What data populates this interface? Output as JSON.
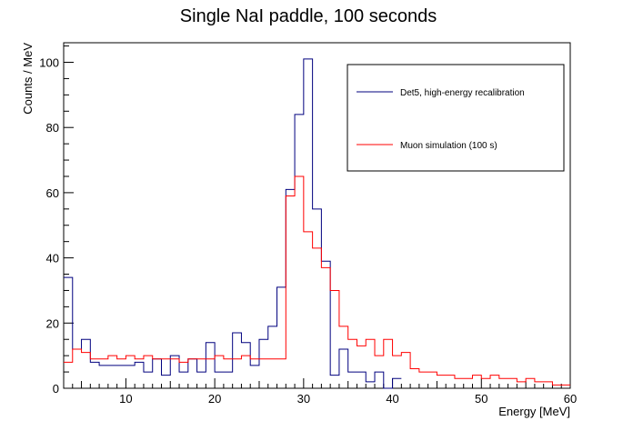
{
  "chart_data": {
    "type": "line",
    "title": "Single NaI paddle, 100 seconds",
    "xlabel": "Energy [MeV]",
    "ylabel": "Counts / MeV",
    "xlim": [
      3,
      60
    ],
    "ylim": [
      0,
      106
    ],
    "x_ticks": [
      "10",
      "20",
      "30",
      "40",
      "50",
      "60"
    ],
    "y_ticks": [
      "0",
      "20",
      "40",
      "60",
      "80",
      "100"
    ],
    "grid": false,
    "legend_position": "top-right",
    "bin_width": 1,
    "series": [
      {
        "name": "Det5, high-energy recalibration",
        "color": "#00007f",
        "x_start": 3,
        "values": [
          34,
          12,
          15,
          8,
          7,
          7,
          7,
          7,
          8,
          5,
          9,
          4,
          10,
          5,
          9,
          5,
          14,
          5,
          5,
          17,
          14,
          7,
          15,
          19,
          31,
          61,
          84,
          101,
          55,
          39,
          4,
          12,
          5,
          5,
          2,
          5,
          0,
          3
        ]
      },
      {
        "name": "Muon simulation (100 s)",
        "color": "#ff0000",
        "x_start": 3,
        "values": [
          8,
          12,
          11,
          9,
          9,
          10,
          9,
          10,
          9,
          10,
          9,
          9,
          9,
          8,
          9,
          9,
          9,
          10,
          9,
          9,
          10,
          9,
          9,
          9,
          9,
          59,
          65,
          48,
          43,
          37,
          30,
          19,
          15,
          13,
          15,
          10,
          15,
          10,
          11,
          6,
          5,
          5,
          4,
          4,
          3,
          3,
          4,
          3,
          4,
          3,
          3,
          2,
          3,
          2,
          2,
          1,
          1
        ]
      }
    ]
  }
}
